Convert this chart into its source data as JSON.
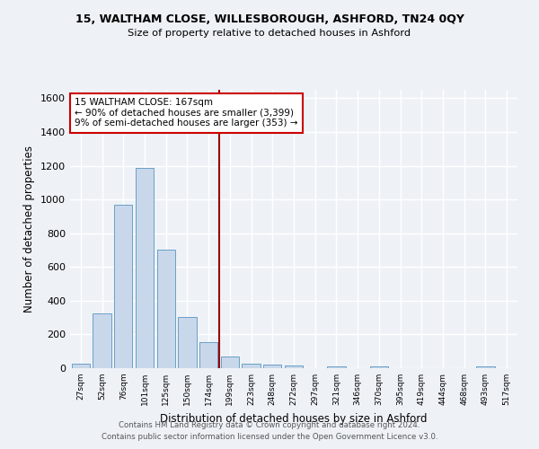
{
  "title1": "15, WALTHAM CLOSE, WILLESBOROUGH, ASHFORD, TN24 0QY",
  "title2": "Size of property relative to detached houses in Ashford",
  "xlabel": "Distribution of detached houses by size in Ashford",
  "ylabel": "Number of detached properties",
  "footnote1": "Contains HM Land Registry data © Crown copyright and database right 2024.",
  "footnote2": "Contains public sector information licensed under the Open Government Licence v3.0.",
  "annotation_line1": "15 WALTHAM CLOSE: 167sqm",
  "annotation_line2": "← 90% of detached houses are smaller (3,399)",
  "annotation_line3": "9% of semi-detached houses are larger (353) →",
  "bar_labels": [
    "27sqm",
    "52sqm",
    "76sqm",
    "101sqm",
    "125sqm",
    "150sqm",
    "174sqm",
    "199sqm",
    "223sqm",
    "248sqm",
    "272sqm",
    "297sqm",
    "321sqm",
    "346sqm",
    "370sqm",
    "395sqm",
    "419sqm",
    "444sqm",
    "468sqm",
    "493sqm",
    "517sqm"
  ],
  "bar_values": [
    25,
    325,
    970,
    1185,
    700,
    305,
    155,
    70,
    28,
    20,
    15,
    0,
    12,
    0,
    10,
    0,
    0,
    0,
    0,
    10,
    0
  ],
  "bar_color": "#c8d8ea",
  "bar_edge_color": "#6a9fc8",
  "vline_x": 6.5,
  "vline_color": "#990000",
  "bg_color": "#eef2f7",
  "grid_color": "#ffffff",
  "ylim": [
    0,
    1650
  ],
  "yticks": [
    0,
    200,
    400,
    600,
    800,
    1000,
    1200,
    1400,
    1600
  ]
}
